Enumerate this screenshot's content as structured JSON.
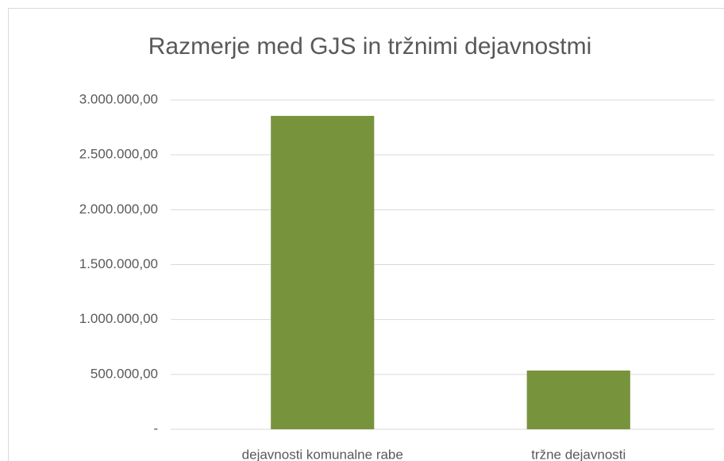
{
  "chart_data": {
    "type": "bar",
    "title": "Razmerje med GJS in tržnimi dejavnostmi",
    "categories": [
      "dejavnosti komunalne rabe",
      "tržne dejavnosti"
    ],
    "values": [
      2855000,
      535000
    ],
    "color": "#77933c",
    "ylim": [
      0,
      3000000
    ],
    "yticks": [
      {
        "value": 0,
        "label": "-"
      },
      {
        "value": 500000,
        "label": "500.000,00"
      },
      {
        "value": 1000000,
        "label": "1.000.000,00"
      },
      {
        "value": 1500000,
        "label": "1.500.000,00"
      },
      {
        "value": 2000000,
        "label": "2.000.000,00"
      },
      {
        "value": 2500000,
        "label": "2.500.000,00"
      },
      {
        "value": 3000000,
        "label": "3.000.000,00"
      }
    ],
    "grid": true
  }
}
